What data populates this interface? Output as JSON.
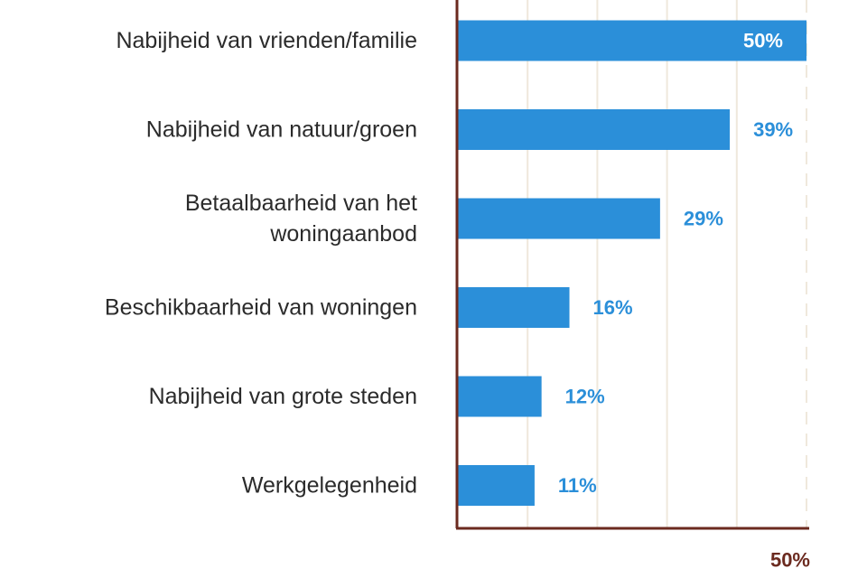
{
  "chart_data": {
    "type": "bar",
    "orientation": "horizontal",
    "categories": [
      [
        "Nabijheid van vrienden/familie"
      ],
      [
        "Nabijheid van natuur/groen"
      ],
      [
        "Betaalbaarheid van het",
        "woningaanbod"
      ],
      [
        "Beschikbaarheid van woningen"
      ],
      [
        "Nabijheid van grote steden"
      ],
      [
        "Werkgelegenheid"
      ]
    ],
    "values": [
      50,
      39,
      29,
      16,
      12,
      11
    ],
    "value_labels": [
      "50%",
      "39%",
      "29%",
      "16%",
      "12%",
      "11%"
    ],
    "xlim": [
      0,
      50
    ],
    "x_max_label": "50%",
    "gridlines": [
      10,
      20,
      30,
      40,
      50
    ],
    "grid": true,
    "title": "",
    "xlabel": "",
    "ylabel": ""
  },
  "colors": {
    "bar": "#2b8fd9",
    "axis": "#6b2a1f",
    "grid": "#efe8dc",
    "value_label": "#2b8fd9",
    "value_label_inside": "#ffffff",
    "category_text": "#2b2b2b"
  }
}
